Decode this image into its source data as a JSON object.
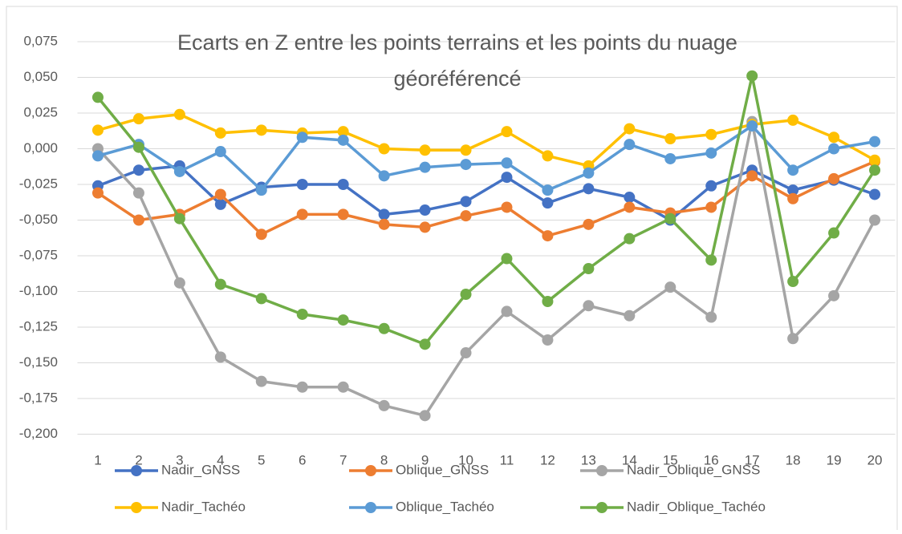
{
  "chart_data": {
    "type": "line",
    "title": [
      "Ecarts en Z entre les points terrains et les points du nuage",
      "géoréférencé"
    ],
    "categories": [
      "1",
      "2",
      "3",
      "4",
      "5",
      "6",
      "7",
      "8",
      "9",
      "10",
      "11",
      "12",
      "13",
      "14",
      "15",
      "16",
      "17",
      "18",
      "19",
      "20"
    ],
    "ylim": [
      -0.2,
      0.075
    ],
    "yticks": [
      {
        "value": 0.075,
        "label": "0,075"
      },
      {
        "value": 0.05,
        "label": "0,050"
      },
      {
        "value": 0.025,
        "label": "0,025"
      },
      {
        "value": 0,
        "label": "0,000"
      },
      {
        "value": -0.025,
        "label": "-0,025"
      },
      {
        "value": -0.05,
        "label": "-0,050"
      },
      {
        "value": -0.075,
        "label": "-0,075"
      },
      {
        "value": -0.1,
        "label": "-0,100"
      },
      {
        "value": -0.125,
        "label": "-0,125"
      },
      {
        "value": -0.15,
        "label": "-0,150"
      },
      {
        "value": -0.175,
        "label": "-0,175"
      },
      {
        "value": -0.2,
        "label": "-0,200"
      }
    ],
    "grid": true,
    "legend": "bottom",
    "series": [
      {
        "name": "Nadir_GNSS",
        "color": "#4472c4",
        "values": [
          -0.026,
          -0.015,
          -0.012,
          -0.039,
          -0.027,
          -0.025,
          -0.025,
          -0.046,
          -0.043,
          -0.037,
          -0.02,
          -0.038,
          -0.028,
          -0.034,
          -0.05,
          -0.026,
          -0.015,
          -0.029,
          -0.022,
          -0.032
        ]
      },
      {
        "name": "Oblique_GNSS",
        "color": "#ed7d31",
        "values": [
          -0.031,
          -0.05,
          -0.046,
          -0.032,
          -0.06,
          -0.046,
          -0.046,
          -0.053,
          -0.055,
          -0.047,
          -0.041,
          -0.061,
          -0.053,
          -0.041,
          -0.045,
          -0.041,
          -0.019,
          -0.035,
          -0.021,
          -0.009
        ]
      },
      {
        "name": "Nadir_Oblique_GNSS",
        "color": "#a5a5a5",
        "values": [
          0.0,
          -0.031,
          -0.094,
          -0.146,
          -0.163,
          -0.167,
          -0.167,
          -0.18,
          -0.187,
          -0.143,
          -0.114,
          -0.134,
          -0.11,
          -0.117,
          -0.097,
          -0.118,
          0.019,
          -0.133,
          -0.103,
          -0.05
        ]
      },
      {
        "name": "Nadir_Tachéo",
        "color": "#ffc000",
        "values": [
          0.013,
          0.021,
          0.024,
          0.011,
          0.013,
          0.011,
          0.012,
          0.0,
          -0.001,
          -0.001,
          0.012,
          -0.005,
          -0.012,
          0.014,
          0.007,
          0.01,
          0.017,
          0.02,
          0.008,
          -0.008
        ]
      },
      {
        "name": "Oblique_Tachéo",
        "color": "#5b9bd5",
        "values": [
          -0.005,
          0.003,
          -0.016,
          -0.002,
          -0.029,
          0.008,
          0.006,
          -0.019,
          -0.013,
          -0.011,
          -0.01,
          -0.029,
          -0.017,
          0.003,
          -0.007,
          -0.003,
          0.016,
          -0.015,
          0.0,
          0.005
        ]
      },
      {
        "name": "Nadir_Oblique_Tachéo",
        "color": "#70ad47",
        "values": [
          0.036,
          0.001,
          -0.049,
          -0.095,
          -0.105,
          -0.116,
          -0.12,
          -0.126,
          -0.137,
          -0.102,
          -0.077,
          -0.107,
          -0.084,
          -0.063,
          -0.049,
          -0.078,
          0.051,
          -0.093,
          -0.059,
          -0.015
        ]
      }
    ]
  }
}
